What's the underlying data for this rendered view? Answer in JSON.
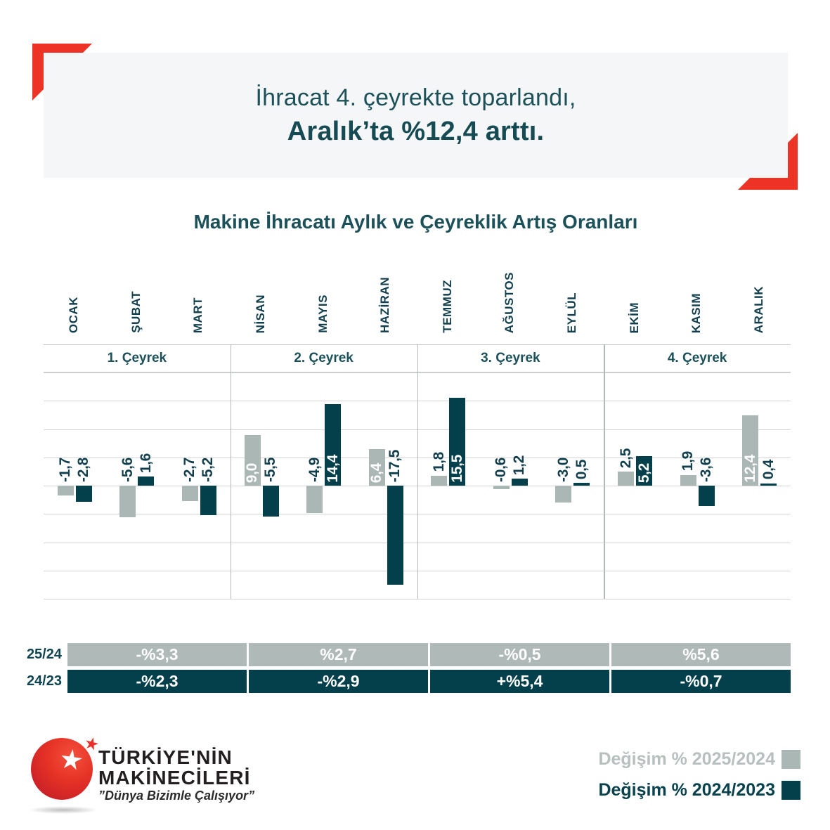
{
  "header": {
    "title_line1": "İhracat 4. çeyrekte toparlandı,",
    "title_line2": "Aralık’ta %12,4 arttı."
  },
  "chart": {
    "title": "Makine İhracatı Aylık ve Çeyreklik Artış Oranları",
    "quarters": [
      "1. Çeyrek",
      "2. Çeyrek",
      "3. Çeyrek",
      "4. Çeyrek"
    ]
  },
  "chart_data": {
    "type": "bar",
    "title": "Makine İhracatı Aylık ve Çeyreklik Artış Oranları",
    "categories": [
      "OCAK",
      "ŞUBAT",
      "MART",
      "NİSAN",
      "MAYIS",
      "HAZİRAN",
      "TEMMUZ",
      "AĞUSTOS",
      "EYLÜL",
      "EKİM",
      "KASIM",
      "ARALIK"
    ],
    "series": [
      {
        "name": "Değişim % 2025/2024",
        "color": "#abb7b5",
        "values": [
          -1.7,
          -5.6,
          -2.7,
          9.0,
          -4.9,
          6.4,
          1.8,
          -0.6,
          -3.0,
          2.5,
          1.9,
          12.4
        ],
        "labels": [
          "-1,7",
          "-5,6",
          "-2,7",
          "9,0",
          "-4,9",
          "6,4",
          "1,8",
          "-0,6",
          "-3,0",
          "2,5",
          "1,9",
          "12,4"
        ]
      },
      {
        "name": "Değişim % 2024/2023",
        "color": "#03404c",
        "values": [
          -2.8,
          1.6,
          -5.2,
          -5.5,
          14.4,
          -17.5,
          15.5,
          1.2,
          0.5,
          5.2,
          -3.6,
          0.4
        ],
        "labels": [
          "-2,8",
          "1,6",
          "-5,2",
          "-5,5",
          "14,4",
          "-17,5",
          "15,5",
          "1,2",
          "0,5",
          "5,2",
          "-3,6",
          "0,4"
        ]
      }
    ],
    "ylim": [
      -20,
      20
    ],
    "grid_step": 5,
    "grid_on": true,
    "legend_position": "bottom-right"
  },
  "summary": {
    "rows": [
      {
        "label": "25/24",
        "values": [
          "-%3,3",
          "%2,7",
          "-%0,5",
          "%5,6"
        ],
        "bg": "#aeb9b8"
      },
      {
        "label": "24/23",
        "values": [
          "-%2,3",
          "-%2,9",
          "+%5,4",
          "-%0,7"
        ],
        "bg": "#03404c"
      }
    ]
  },
  "legend": {
    "items": [
      {
        "label": "Değişim % 2025/2024",
        "swatch": "#abb7b5",
        "text_color": "#b7c0bf"
      },
      {
        "label": "Değişim % 2024/2023",
        "swatch": "#03404c",
        "text_color": "#09424d"
      }
    ]
  },
  "logo": {
    "line1": "TÜRKİYE'NİN",
    "line2": "MAKİNECİLERİ",
    "tagline": "”Dünya Bizimle Çalışıyor”"
  },
  "colors": {
    "accent_red": "#ed3326",
    "teal_dark": "#03404c",
    "gray_bar": "#abb7b5",
    "heading": "#1d515a",
    "panel_bg": "#f4f6f8"
  }
}
